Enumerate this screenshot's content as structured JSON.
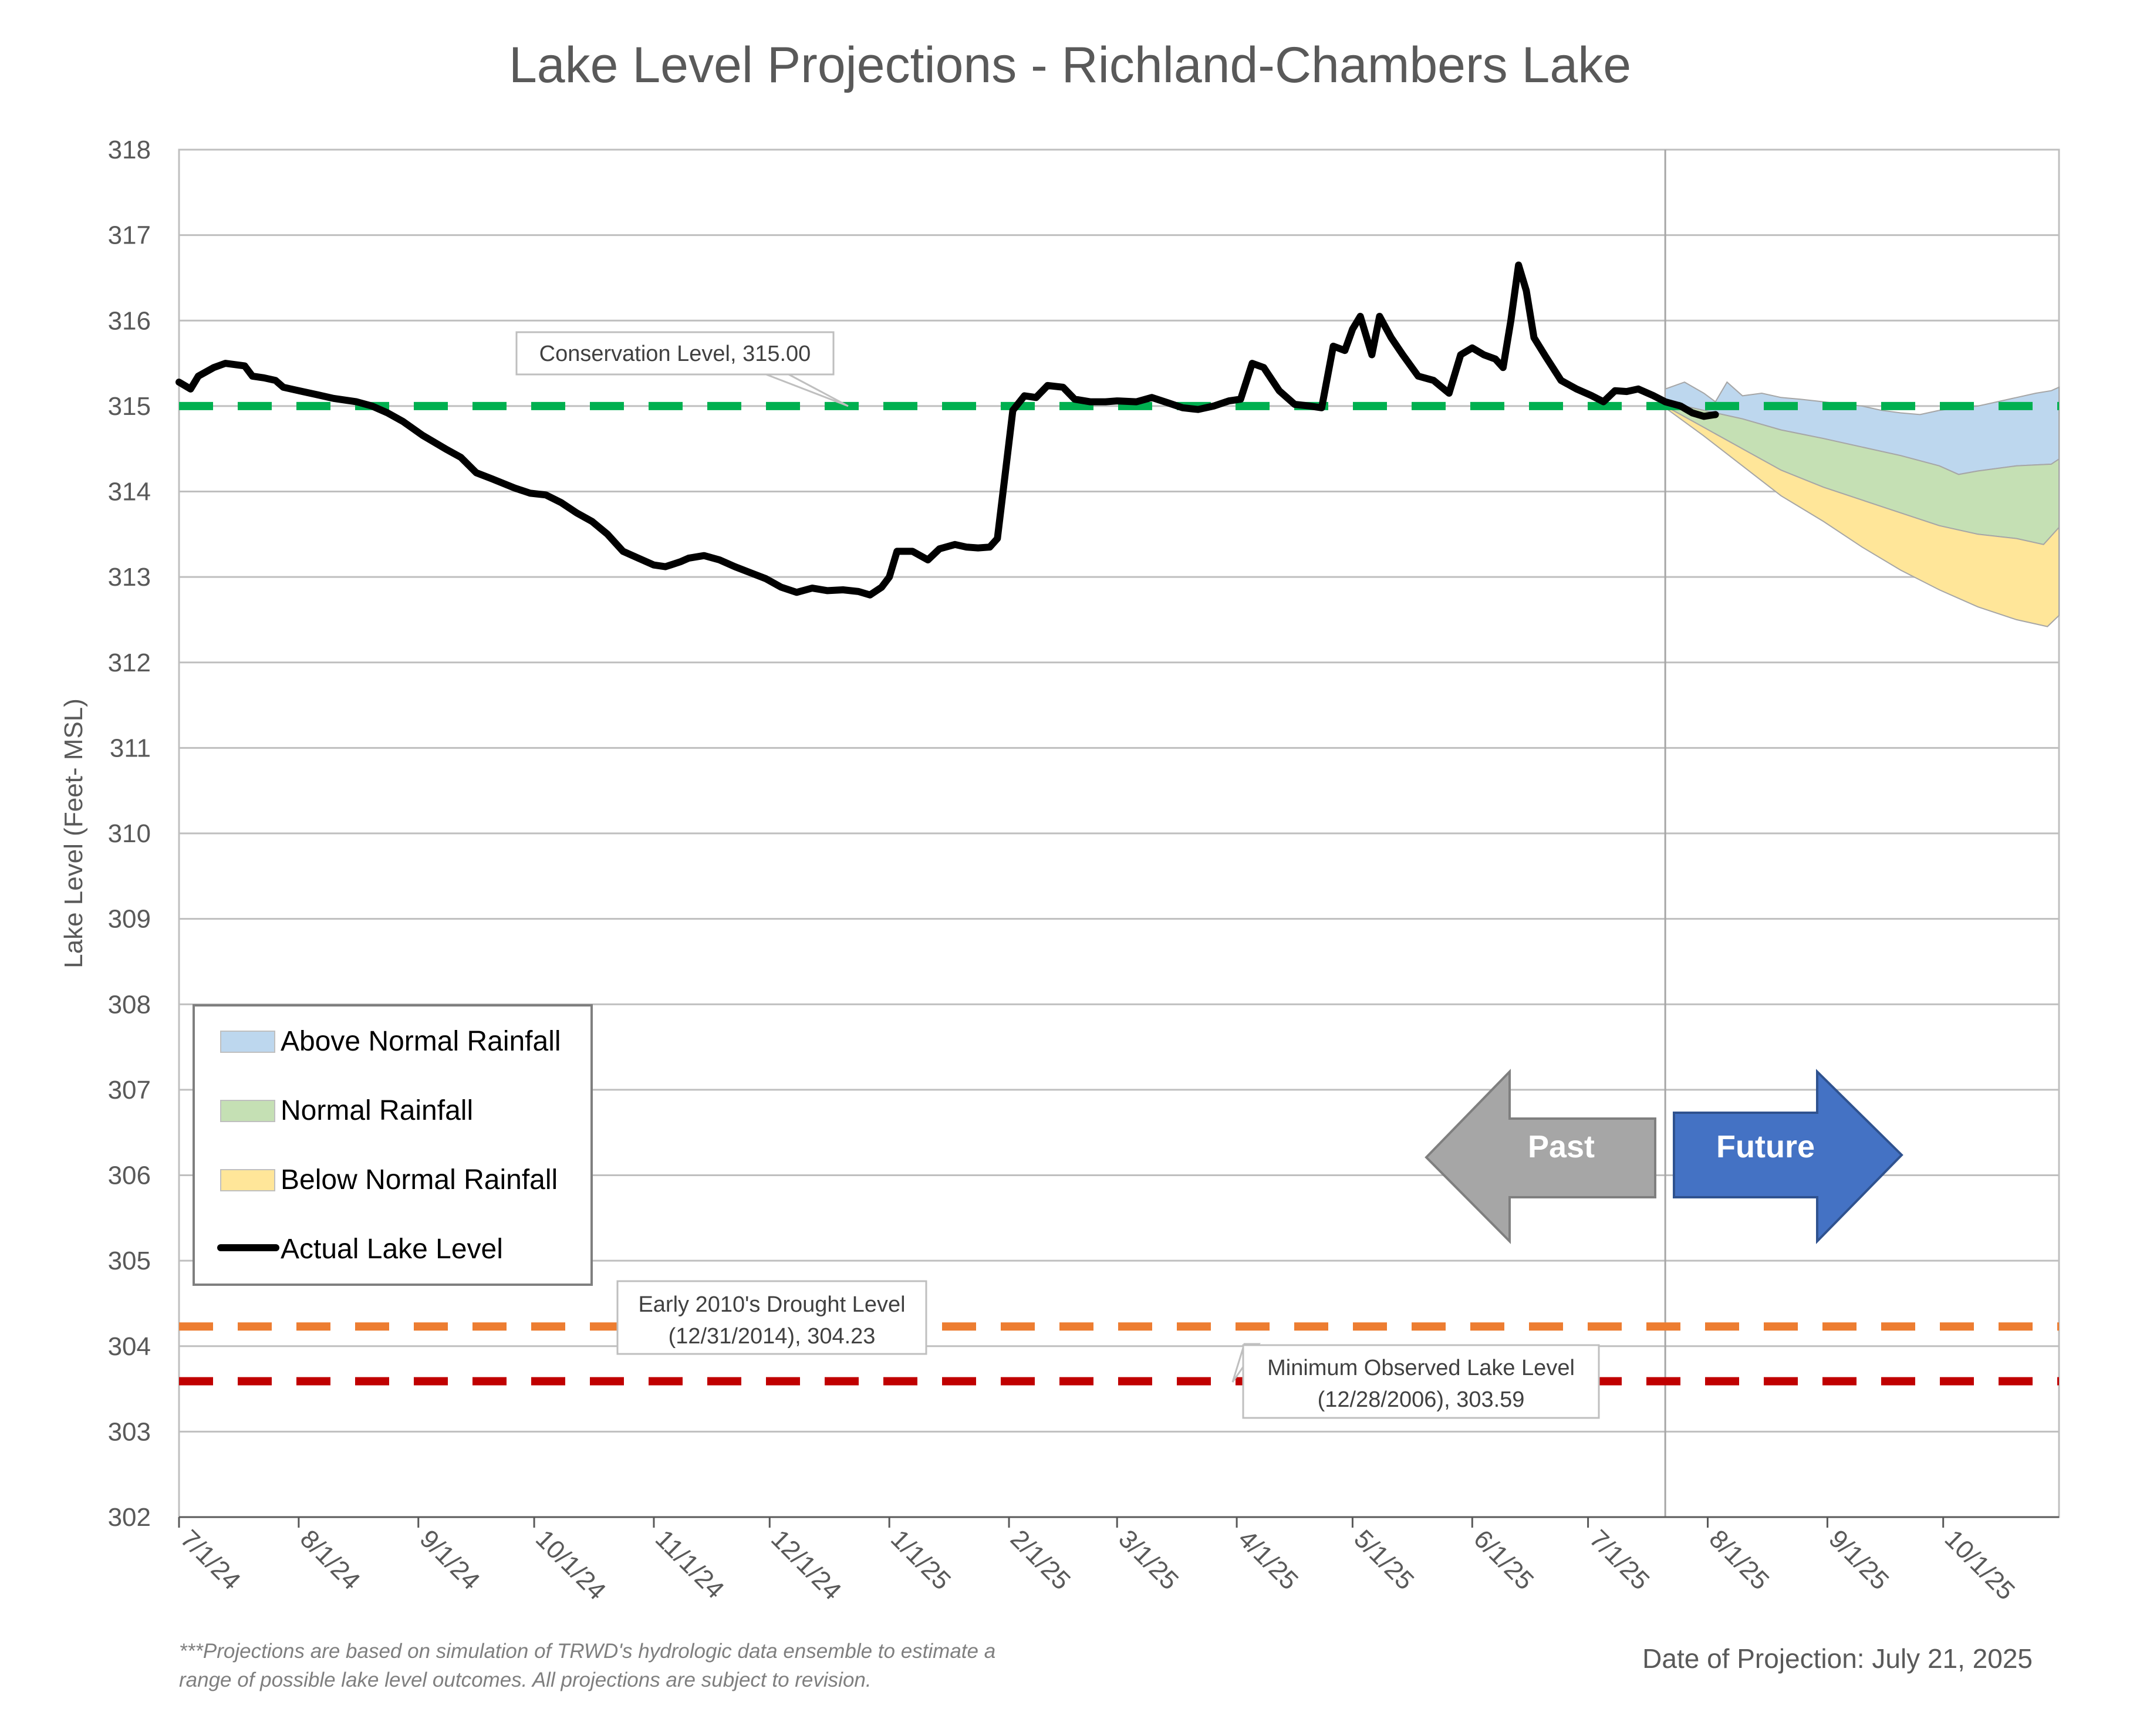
{
  "chart_data": {
    "type": "line",
    "title": "Lake Level Projections - Richland-Chambers Lake",
    "ylabel": "Lake Level (Feet- MSL)",
    "xlabel": "",
    "ylim": [
      302,
      318
    ],
    "xlim": [
      "2024-07-01",
      "2025-10-31"
    ],
    "yticks": [
      "302",
      "303",
      "304",
      "305",
      "306",
      "307",
      "308",
      "309",
      "310",
      "311",
      "312",
      "313",
      "314",
      "315",
      "316",
      "317",
      "318"
    ],
    "xticks": [
      {
        "date": "2024-07-01",
        "label": "7/1/24"
      },
      {
        "date": "2024-08-01",
        "label": "8/1/24"
      },
      {
        "date": "2024-09-01",
        "label": "9/1/24"
      },
      {
        "date": "2024-10-01",
        "label": "10/1/24"
      },
      {
        "date": "2024-11-01",
        "label": "11/1/24"
      },
      {
        "date": "2024-12-01",
        "label": "12/1/24"
      },
      {
        "date": "2025-01-01",
        "label": "1/1/25"
      },
      {
        "date": "2025-02-01",
        "label": "2/1/25"
      },
      {
        "date": "2025-03-01",
        "label": "3/1/25"
      },
      {
        "date": "2025-04-01",
        "label": "4/1/25"
      },
      {
        "date": "2025-05-01",
        "label": "5/1/25"
      },
      {
        "date": "2025-06-01",
        "label": "6/1/25"
      },
      {
        "date": "2025-07-01",
        "label": "7/1/25"
      },
      {
        "date": "2025-08-01",
        "label": "8/1/25"
      },
      {
        "date": "2025-09-01",
        "label": "9/1/25"
      },
      {
        "date": "2025-10-01",
        "label": "10/1/25"
      }
    ],
    "grid": "horizontal",
    "projection_date": "2025-07-21",
    "series": [
      {
        "name": "Actual Lake Level",
        "color": "#000000",
        "points": [
          [
            "2024-07-01",
            315.28
          ],
          [
            "2024-07-04",
            315.2
          ],
          [
            "2024-07-06",
            315.35
          ],
          [
            "2024-07-10",
            315.45
          ],
          [
            "2024-07-13",
            315.5
          ],
          [
            "2024-07-18",
            315.47
          ],
          [
            "2024-07-20",
            315.35
          ],
          [
            "2024-07-23",
            315.33
          ],
          [
            "2024-07-26",
            315.3
          ],
          [
            "2024-07-28",
            315.22
          ],
          [
            "2024-08-01",
            315.18
          ],
          [
            "2024-08-06",
            315.13
          ],
          [
            "2024-08-10",
            315.09
          ],
          [
            "2024-08-16",
            315.05
          ],
          [
            "2024-08-20",
            315.0
          ],
          [
            "2024-08-24",
            314.92
          ],
          [
            "2024-08-28",
            314.82
          ],
          [
            "2024-09-02",
            314.66
          ],
          [
            "2024-09-08",
            314.5
          ],
          [
            "2024-09-12",
            314.4
          ],
          [
            "2024-09-16",
            314.22
          ],
          [
            "2024-09-20",
            314.15
          ],
          [
            "2024-09-26",
            314.04
          ],
          [
            "2024-09-30",
            313.98
          ],
          [
            "2024-10-04",
            313.96
          ],
          [
            "2024-10-08",
            313.87
          ],
          [
            "2024-10-12",
            313.75
          ],
          [
            "2024-10-16",
            313.65
          ],
          [
            "2024-10-20",
            313.5
          ],
          [
            "2024-10-24",
            313.3
          ],
          [
            "2024-10-28",
            313.22
          ],
          [
            "2024-11-01",
            313.14
          ],
          [
            "2024-11-04",
            313.12
          ],
          [
            "2024-11-08",
            313.18
          ],
          [
            "2024-11-10",
            313.22
          ],
          [
            "2024-11-14",
            313.25
          ],
          [
            "2024-11-18",
            313.2
          ],
          [
            "2024-11-22",
            313.12
          ],
          [
            "2024-11-26",
            313.05
          ],
          [
            "2024-11-30",
            312.98
          ],
          [
            "2024-12-04",
            312.88
          ],
          [
            "2024-12-08",
            312.82
          ],
          [
            "2024-12-12",
            312.87
          ],
          [
            "2024-12-16",
            312.84
          ],
          [
            "2024-12-20",
            312.85
          ],
          [
            "2024-12-24",
            312.83
          ],
          [
            "2024-12-27",
            312.79
          ],
          [
            "2024-12-30",
            312.88
          ],
          [
            "2025-01-01",
            313.0
          ],
          [
            "2025-01-03",
            313.3
          ],
          [
            "2025-01-07",
            313.3
          ],
          [
            "2025-01-11",
            313.2
          ],
          [
            "2025-01-14",
            313.33
          ],
          [
            "2025-01-18",
            313.38
          ],
          [
            "2025-01-21",
            313.35
          ],
          [
            "2025-01-24",
            313.34
          ],
          [
            "2025-01-27",
            313.35
          ],
          [
            "2025-01-29",
            313.45
          ],
          [
            "2025-01-31",
            314.2
          ],
          [
            "2025-02-02",
            314.95
          ],
          [
            "2025-02-05",
            315.12
          ],
          [
            "2025-02-08",
            315.1
          ],
          [
            "2025-02-11",
            315.24
          ],
          [
            "2025-02-15",
            315.22
          ],
          [
            "2025-02-18",
            315.08
          ],
          [
            "2025-02-22",
            315.05
          ],
          [
            "2025-02-26",
            315.05
          ],
          [
            "2025-03-01",
            315.06
          ],
          [
            "2025-03-06",
            315.05
          ],
          [
            "2025-03-10",
            315.1
          ],
          [
            "2025-03-14",
            315.04
          ],
          [
            "2025-03-18",
            314.98
          ],
          [
            "2025-03-22",
            314.96
          ],
          [
            "2025-03-26",
            315.0
          ],
          [
            "2025-03-30",
            315.06
          ],
          [
            "2025-04-02",
            315.08
          ],
          [
            "2025-04-05",
            315.5
          ],
          [
            "2025-04-08",
            315.45
          ],
          [
            "2025-04-12",
            315.18
          ],
          [
            "2025-04-16",
            315.02
          ],
          [
            "2025-04-20",
            315.0
          ],
          [
            "2025-04-23",
            314.98
          ],
          [
            "2025-04-26",
            315.7
          ],
          [
            "2025-04-29",
            315.65
          ],
          [
            "2025-05-01",
            315.9
          ],
          [
            "2025-05-03",
            316.05
          ],
          [
            "2025-05-06",
            315.6
          ],
          [
            "2025-05-08",
            316.05
          ],
          [
            "2025-05-11",
            315.8
          ],
          [
            "2025-05-14",
            315.6
          ],
          [
            "2025-05-18",
            315.35
          ],
          [
            "2025-05-22",
            315.3
          ],
          [
            "2025-05-26",
            315.15
          ],
          [
            "2025-05-29",
            315.6
          ],
          [
            "2025-06-01",
            315.68
          ],
          [
            "2025-06-04",
            315.6
          ],
          [
            "2025-06-07",
            315.55
          ],
          [
            "2025-06-09",
            315.45
          ],
          [
            "2025-06-11",
            316.0
          ],
          [
            "2025-06-13",
            316.65
          ],
          [
            "2025-06-15",
            316.35
          ],
          [
            "2025-06-17",
            315.8
          ],
          [
            "2025-06-20",
            315.58
          ],
          [
            "2025-06-24",
            315.3
          ],
          [
            "2025-06-28",
            315.2
          ],
          [
            "2025-07-02",
            315.12
          ],
          [
            "2025-07-05",
            315.05
          ],
          [
            "2025-07-08",
            315.18
          ],
          [
            "2025-07-11",
            315.17
          ],
          [
            "2025-07-14",
            315.2
          ],
          [
            "2025-07-18",
            315.12
          ],
          [
            "2025-07-21",
            315.05
          ],
          [
            "2025-07-25",
            315.0
          ],
          [
            "2025-07-28",
            314.92
          ],
          [
            "2025-07-31",
            314.88
          ],
          [
            "2025-08-03",
            314.9
          ]
        ]
      },
      {
        "name": "Above Normal Rainfall",
        "color": "#bdd7ee",
        "upper": [
          [
            "2025-07-21",
            315.2
          ],
          [
            "2025-07-26",
            315.28
          ],
          [
            "2025-07-31",
            315.15
          ],
          [
            "2025-08-03",
            315.05
          ],
          [
            "2025-08-06",
            315.28
          ],
          [
            "2025-08-10",
            315.12
          ],
          [
            "2025-08-15",
            315.15
          ],
          [
            "2025-08-20",
            315.1
          ],
          [
            "2025-08-25",
            315.08
          ],
          [
            "2025-08-31",
            315.05
          ],
          [
            "2025-09-05",
            315.02
          ],
          [
            "2025-09-10",
            315.0
          ],
          [
            "2025-09-15",
            314.95
          ],
          [
            "2025-09-20",
            314.92
          ],
          [
            "2025-09-25",
            314.9
          ],
          [
            "2025-09-30",
            314.95
          ],
          [
            "2025-10-05",
            314.98
          ],
          [
            "2025-10-10",
            315.0
          ],
          [
            "2025-10-15",
            315.05
          ],
          [
            "2025-10-20",
            315.1
          ],
          [
            "2025-10-25",
            315.15
          ],
          [
            "2025-10-29",
            315.18
          ],
          [
            "2025-10-31",
            315.22
          ]
        ],
        "lower": [
          [
            "2025-07-21",
            315.05
          ],
          [
            "2025-07-31",
            314.95
          ],
          [
            "2025-08-10",
            314.85
          ],
          [
            "2025-08-20",
            314.72
          ],
          [
            "2025-08-31",
            314.62
          ],
          [
            "2025-09-10",
            314.52
          ],
          [
            "2025-09-20",
            314.42
          ],
          [
            "2025-09-30",
            314.3
          ],
          [
            "2025-10-05",
            314.2
          ],
          [
            "2025-10-10",
            314.24
          ],
          [
            "2025-10-20",
            314.3
          ],
          [
            "2025-10-29",
            314.32
          ],
          [
            "2025-10-31",
            314.38
          ]
        ]
      },
      {
        "name": "Normal Rainfall",
        "color": "#c5e0b4",
        "upper": [
          [
            "2025-07-21",
            315.05
          ],
          [
            "2025-07-31",
            314.95
          ],
          [
            "2025-08-10",
            314.85
          ],
          [
            "2025-08-20",
            314.72
          ],
          [
            "2025-08-31",
            314.62
          ],
          [
            "2025-09-10",
            314.52
          ],
          [
            "2025-09-20",
            314.42
          ],
          [
            "2025-09-30",
            314.3
          ],
          [
            "2025-10-05",
            314.2
          ],
          [
            "2025-10-10",
            314.24
          ],
          [
            "2025-10-20",
            314.3
          ],
          [
            "2025-10-29",
            314.32
          ],
          [
            "2025-10-31",
            314.38
          ]
        ],
        "lower": [
          [
            "2025-07-21",
            315.0
          ],
          [
            "2025-07-31",
            314.75
          ],
          [
            "2025-08-10",
            314.5
          ],
          [
            "2025-08-20",
            314.25
          ],
          [
            "2025-08-31",
            314.05
          ],
          [
            "2025-09-10",
            313.9
          ],
          [
            "2025-09-20",
            313.75
          ],
          [
            "2025-09-30",
            313.6
          ],
          [
            "2025-10-10",
            313.5
          ],
          [
            "2025-10-20",
            313.45
          ],
          [
            "2025-10-27",
            313.38
          ],
          [
            "2025-10-31",
            313.58
          ]
        ]
      },
      {
        "name": "Below Normal Rainfall",
        "color": "#ffe699",
        "upper": [
          [
            "2025-07-21",
            315.0
          ],
          [
            "2025-07-31",
            314.75
          ],
          [
            "2025-08-10",
            314.5
          ],
          [
            "2025-08-20",
            314.25
          ],
          [
            "2025-08-31",
            314.05
          ],
          [
            "2025-09-10",
            313.9
          ],
          [
            "2025-09-20",
            313.75
          ],
          [
            "2025-09-30",
            313.6
          ],
          [
            "2025-10-10",
            313.5
          ],
          [
            "2025-10-20",
            313.45
          ],
          [
            "2025-10-27",
            313.38
          ],
          [
            "2025-10-31",
            313.58
          ]
        ],
        "lower": [
          [
            "2025-07-21",
            314.98
          ],
          [
            "2025-07-31",
            314.65
          ],
          [
            "2025-08-10",
            314.3
          ],
          [
            "2025-08-20",
            313.95
          ],
          [
            "2025-08-31",
            313.65
          ],
          [
            "2025-09-10",
            313.35
          ],
          [
            "2025-09-20",
            313.08
          ],
          [
            "2025-09-30",
            312.85
          ],
          [
            "2025-10-10",
            312.65
          ],
          [
            "2025-10-20",
            312.5
          ],
          [
            "2025-10-28",
            312.42
          ],
          [
            "2025-10-31",
            312.55
          ]
        ]
      }
    ],
    "reference_lines": [
      {
        "name": "Conservation Level",
        "value": 315.0,
        "color": "#00b050"
      },
      {
        "name": "Early 2010's Drought Level",
        "value": 304.23,
        "color": "#ed7d31"
      },
      {
        "name": "Minimum Observed Lake Level",
        "value": 303.59,
        "color": "#c00000"
      }
    ],
    "annotations": {
      "conservation": "Conservation Level, 315.00",
      "drought_line1": "Early 2010's Drought Level",
      "drought_line2": "(12/31/2014), 304.23",
      "minimum_line1": "Minimum Observed Lake Level",
      "minimum_line2": "(12/28/2006), 303.59"
    },
    "arrows": {
      "past": "Past",
      "future": "Future",
      "past_color": "#a6a6a6",
      "future_color": "#4472c4"
    },
    "legend": {
      "position": "bottom-left",
      "items": [
        {
          "label": "Above Normal Rainfall",
          "color": "#bdd7ee",
          "kind": "area"
        },
        {
          "label": "Normal Rainfall",
          "color": "#c5e0b4",
          "kind": "area"
        },
        {
          "label": "Below Normal Rainfall",
          "color": "#ffe699",
          "kind": "area"
        },
        {
          "label": "Actual Lake Level",
          "color": "#000000",
          "kind": "line"
        }
      ]
    },
    "footnote_line1": "***Projections are based on simulation of TRWD's hydrologic data ensemble to estimate a",
    "footnote_line2": "range of possible lake level outcomes.  All projections are subject to revision.",
    "projection_label": "Date of Projection: July 21, 2025"
  }
}
